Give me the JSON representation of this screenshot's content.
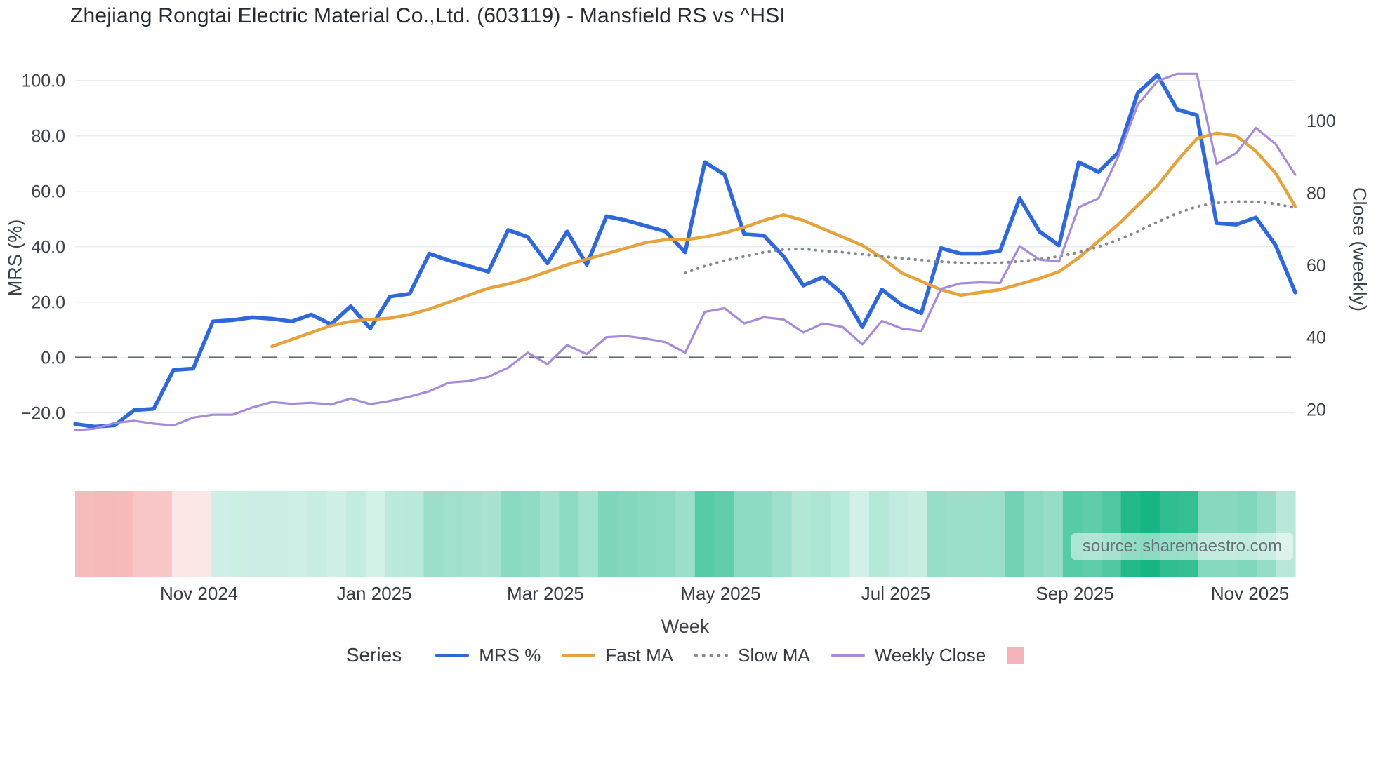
{
  "title": "Zhejiang Rongtai Electric Material Co.,Ltd. (603119) - Mansfield RS vs ^HSI",
  "source": "source: sharemaestro.com",
  "legend": {
    "title": "Series",
    "items": [
      {
        "label": "MRS %",
        "swatch": "line",
        "color": "#2f68d8"
      },
      {
        "label": "Fast MA",
        "swatch": "line",
        "color": "#e6a23c"
      },
      {
        "label": "Slow MA",
        "swatch": "dotted",
        "color": "#83898f"
      },
      {
        "label": "Weekly Close",
        "swatch": "line",
        "color": "#a78bd9"
      },
      {
        "label": "",
        "swatch": "square",
        "color": "#f5b4ba"
      }
    ]
  },
  "colors": {
    "mrs": "#2f68d8",
    "fast_ma": "#e6a23c",
    "slow_ma": "#83898f",
    "weekly_close": "#a78bd9",
    "heat_positive": "#17b584",
    "heat_negative": "#ee7f7f",
    "zero_line": "#636b76",
    "gridline": "#e8ecf2",
    "tick_text": "#3d434c"
  },
  "chart_data": {
    "type": "line",
    "title": "Zhejiang Rongtai Electric Material Co.,Ltd. (603119) - Mansfield RS vs ^HSI",
    "xlabel": "Week",
    "points": 63,
    "x_ticks": [
      {
        "label": "Nov 2024",
        "index": 6.3
      },
      {
        "label": "Jan 2025",
        "index": 15.2
      },
      {
        "label": "Mar 2025",
        "index": 23.9
      },
      {
        "label": "May 2025",
        "index": 32.8
      },
      {
        "label": "Jul 2025",
        "index": 41.7
      },
      {
        "label": "Sep 2025",
        "index": 50.8
      },
      {
        "label": "Nov 2025",
        "index": 59.7
      }
    ],
    "left_axis": {
      "label": "MRS (%)",
      "tick_labels": [
        "100.0",
        "80.0",
        "60.0",
        "40.0",
        "20.0",
        "0.0",
        "−20.0"
      ],
      "tick_values": [
        100,
        80,
        60,
        40,
        20,
        0,
        -20
      ],
      "range": [
        -33,
        105
      ],
      "zero_dashed_line": 0,
      "grid": true
    },
    "right_axis": {
      "label": "Close (weekly)",
      "tick_labels": [
        "100",
        "80",
        "60",
        "40",
        "20"
      ],
      "tick_values": [
        100,
        80,
        60,
        40,
        20
      ],
      "range": [
        9,
        115
      ]
    },
    "series": [
      {
        "name": "MRS %",
        "axis": "left",
        "style": "solid",
        "width": 5.5,
        "color": "#2f68d8",
        "values": [
          -24,
          -25,
          -24.5,
          -19,
          -18.5,
          -4.5,
          -4,
          13,
          13.5,
          14.5,
          14,
          13,
          15.5,
          12,
          18.5,
          10.5,
          22,
          23,
          37.5,
          35,
          33,
          31,
          46,
          43.5,
          34,
          45.5,
          33.5,
          51,
          49.5,
          47.5,
          45.5,
          38,
          70.5,
          66,
          44.5,
          44,
          36.5,
          26,
          29,
          23,
          11,
          24.5,
          19,
          16,
          39.5,
          37.5,
          37.5,
          38.5,
          57.5,
          45.5,
          40.5,
          70.5,
          67,
          74,
          95.5,
          102,
          89.5,
          87.5,
          48.5,
          48,
          50.5,
          40.5,
          23.5
        ]
      },
      {
        "name": "Fast MA",
        "axis": "left",
        "style": "solid",
        "width": 4.5,
        "color": "#e6a23c",
        "values": [
          null,
          null,
          null,
          null,
          null,
          null,
          null,
          null,
          null,
          null,
          4,
          6.5,
          9,
          11.5,
          13,
          13.8,
          14.2,
          15.5,
          17.5,
          20,
          22.5,
          25,
          26.5,
          28.5,
          31,
          33.5,
          35.5,
          37.5,
          39.5,
          41.5,
          42.5,
          42.5,
          43.5,
          45,
          47,
          49.5,
          51.5,
          49.5,
          46.5,
          43.5,
          40.5,
          36,
          30.5,
          27.5,
          24.5,
          22.5,
          23.5,
          24.5,
          26.5,
          28.5,
          31,
          36,
          42,
          48,
          55,
          62,
          71,
          79,
          81,
          80,
          74.5,
          66.5,
          54.5
        ]
      },
      {
        "name": "Slow MA",
        "axis": "left",
        "style": "dotted",
        "width": 4,
        "color": "#83898f",
        "values": [
          null,
          null,
          null,
          null,
          null,
          null,
          null,
          null,
          null,
          null,
          null,
          null,
          null,
          null,
          null,
          null,
          null,
          null,
          null,
          null,
          null,
          null,
          null,
          null,
          null,
          null,
          null,
          null,
          null,
          null,
          null,
          30.5,
          33,
          35,
          36.5,
          38,
          39,
          39.2,
          38.5,
          38,
          37.3,
          36.5,
          35.8,
          35.2,
          34.6,
          34.2,
          34,
          34.2,
          34.7,
          35.5,
          36.5,
          38,
          40,
          42.5,
          45.5,
          49,
          52,
          54.5,
          55.8,
          56.3,
          56.2,
          55.5,
          54
        ]
      },
      {
        "name": "Weekly Close",
        "axis": "right",
        "style": "solid",
        "width": 3.2,
        "color": "#a78bd9",
        "values": [
          14.2,
          14.6,
          16.2,
          16.8,
          16,
          15.5,
          17.7,
          18.5,
          18.5,
          20.5,
          22,
          21.5,
          21.8,
          21.3,
          23,
          21.4,
          22.3,
          23.5,
          25,
          27.4,
          27.8,
          29,
          31.5,
          35.7,
          32.5,
          37.8,
          35.3,
          40,
          40.3,
          39.6,
          38.6,
          35.7,
          47,
          48,
          43.8,
          45.5,
          44.9,
          41.3,
          43.8,
          42.8,
          38,
          44.5,
          42.4,
          41.7,
          53.4,
          54.9,
          55.2,
          55,
          65.2,
          61.5,
          61,
          76,
          78.5,
          90,
          104.5,
          111,
          113,
          113,
          88,
          91,
          98,
          93.5,
          85
        ]
      }
    ],
    "heatmap": {
      "maps_series": "MRS %",
      "negative_color": "#ee7f7f",
      "positive_color": "#17b584",
      "description": "one cell per week, red for negative MRS, green intensity scales with positive MRS"
    }
  }
}
